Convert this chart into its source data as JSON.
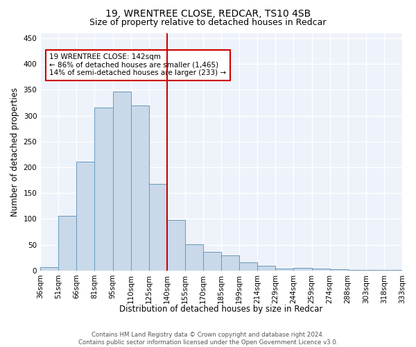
{
  "title": "19, WRENTREE CLOSE, REDCAR, TS10 4SB",
  "subtitle": "Size of property relative to detached houses in Redcar",
  "xlabel": "Distribution of detached houses by size in Redcar",
  "ylabel": "Number of detached properties",
  "categories": [
    "36sqm",
    "51sqm",
    "66sqm",
    "81sqm",
    "95sqm",
    "110sqm",
    "125sqm",
    "140sqm",
    "155sqm",
    "170sqm",
    "185sqm",
    "199sqm",
    "214sqm",
    "229sqm",
    "244sqm",
    "259sqm",
    "274sqm",
    "288sqm",
    "303sqm",
    "318sqm",
    "333sqm"
  ],
  "values": [
    7,
    106,
    211,
    316,
    346,
    319,
    168,
    98,
    51,
    36,
    29,
    16,
    9,
    4,
    5,
    4,
    2,
    1,
    1,
    1
  ],
  "bar_color": "#c9d9ea",
  "bar_edge_color": "#6699bb",
  "vline_color": "#cc0000",
  "annotation_text": "19 WRENTREE CLOSE: 142sqm\n← 86% of detached houses are smaller (1,465)\n14% of semi-detached houses are larger (233) →",
  "annotation_box_color": "#ffffff",
  "annotation_box_edge_color": "#cc0000",
  "background_color": "#eef2fa",
  "grid_color": "#ffffff",
  "ylim": [
    0,
    460
  ],
  "footer": "Contains HM Land Registry data © Crown copyright and database right 2024.\nContains public sector information licensed under the Open Government Licence v3.0.",
  "title_fontsize": 10,
  "subtitle_fontsize": 9,
  "tick_fontsize": 7.5,
  "ylabel_fontsize": 8.5,
  "xlabel_fontsize": 8.5,
  "annotation_fontsize": 7.5,
  "footer_fontsize": 6.2
}
